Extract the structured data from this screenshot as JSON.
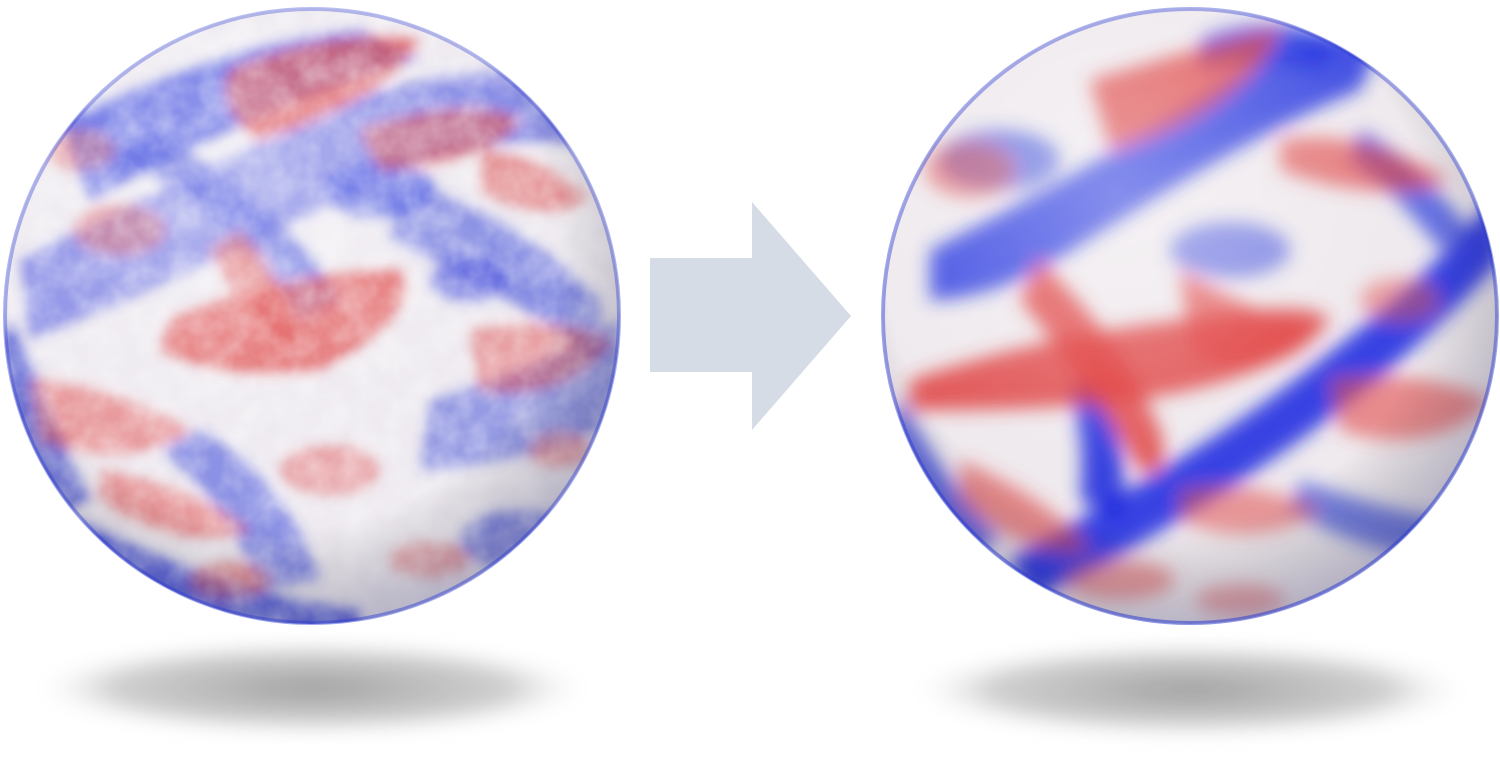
{
  "diagram": {
    "colors": {
      "background": "#ffffff",
      "positive": "#d82b2b",
      "negative": "#1f2fd8",
      "neutral": "#f2eeee",
      "arrow": "#d5dce6",
      "shadow": "#9a9a9a"
    },
    "spheres": [
      {
        "name": "input-sphere",
        "texture": "noisy-mottled",
        "colormap": "red-white-blue"
      },
      {
        "name": "output-sphere",
        "texture": "smooth-banded",
        "colormap": "red-white-blue"
      }
    ],
    "arrow": {
      "direction": "right",
      "icon": "right-arrow-icon"
    }
  }
}
